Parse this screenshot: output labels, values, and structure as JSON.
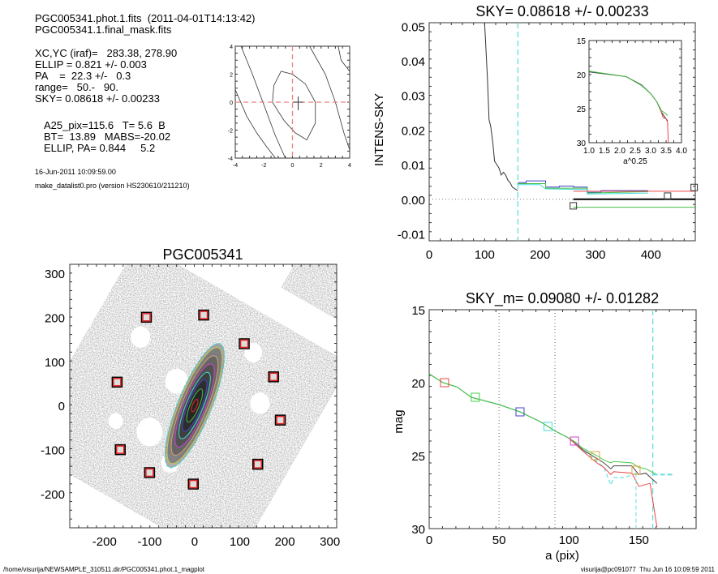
{
  "info": {
    "lines_top": [
      "PGC005341.phot.1.fits  (2011-04-01T14:13:42)",
      "PGC005341.1.final_mask.fits"
    ],
    "lines_params": [
      "XC,YC (iraf)=   283.38, 278.90",
      "ELLIP = 0.821 +/- 0.003",
      "PA    =  22.3 +/-   0.3",
      "range=   50.-   90.",
      "SKY= 0.08618 +/- 0.00233"
    ],
    "lines_results": [
      "A25_pix=115.6   T= 5.6  B",
      "BT=  13.89   MABS=-20.02",
      "ELLIP, PA= 0.844     5.2"
    ],
    "date": "16-Jun-2011 10:09:59.00",
    "program": "make_datalist0.pro (version HS230610/211210)"
  },
  "footer": {
    "path": "/home/visurija/NEWSAMPLE_310511.dir/PGC005341.phot.1_magplot",
    "user_time": "visurija@pc091077  Thu Jun 16 10:09:59 2011"
  },
  "chart_data": [
    {
      "id": "center",
      "type": "line",
      "title": "",
      "xlim": [
        -4,
        4
      ],
      "ylim": [
        -4,
        4
      ],
      "xticks": [
        "-4",
        "-2",
        "0",
        "2",
        "4"
      ],
      "yticks": [
        "-4",
        "-2",
        "0",
        "2",
        "4"
      ],
      "crosshair": [
        0,
        0
      ],
      "center_marker": [
        0.4,
        -0.2
      ],
      "contours": [
        [
          [
            -4,
            0.9
          ],
          [
            -3.2,
            -1
          ],
          [
            -2.5,
            -2.2
          ],
          [
            -1.8,
            -3.2
          ],
          [
            -1.2,
            -4
          ]
        ],
        [
          [
            -1.4,
            0
          ],
          [
            -1.3,
            1.2
          ],
          [
            -0.8,
            2.2
          ],
          [
            0,
            2
          ],
          [
            0.9,
            1.3
          ],
          [
            1.6,
            0
          ],
          [
            1.6,
            -1.5
          ],
          [
            1,
            -2.7
          ],
          [
            0.2,
            -2.2
          ],
          [
            -0.6,
            -1.3
          ],
          [
            -1.4,
            0
          ]
        ],
        [
          [
            -3.6,
            4
          ],
          [
            -2.8,
            2
          ],
          [
            -2,
            -0.2
          ],
          [
            -1.2,
            -2.4
          ],
          [
            -0.5,
            -4
          ]
        ],
        [
          [
            1.2,
            4
          ],
          [
            2.3,
            2
          ],
          [
            3,
            0
          ],
          [
            3.6,
            -2.2
          ],
          [
            4,
            -3.4
          ]
        ],
        [
          [
            3.2,
            4
          ],
          [
            3.4,
            3
          ],
          [
            4,
            2.2
          ]
        ]
      ]
    },
    {
      "id": "sky",
      "type": "line",
      "title": "SKY= 0.08618 +/- 0.00233",
      "ylabel": "INTENS-SKY",
      "xlim": [
        0,
        480
      ],
      "ylim": [
        -0.012,
        0.051
      ],
      "xticks": [
        0,
        100,
        200,
        300,
        400
      ],
      "yticks": [
        "0.05",
        "0.04",
        "0.03",
        "0.02",
        "0.01",
        "0.00",
        "-0.01"
      ],
      "ytick_values": [
        0.05,
        0.04,
        0.03,
        0.02,
        0.01,
        0.0,
        -0.01
      ],
      "sky_radius": 160,
      "series": [
        {
          "name": "profile",
          "color": "#333333",
          "points": [
            [
              100,
              0.051
            ],
            [
              105,
              0.035
            ],
            [
              108,
              0.023
            ],
            [
              111,
              0.021
            ],
            [
              115,
              0.016
            ],
            [
              118,
              0.011
            ],
            [
              122,
              0.01
            ],
            [
              126,
              0.009
            ],
            [
              130,
              0.007
            ],
            [
              134,
              0.0078
            ],
            [
              138,
              0.007
            ],
            [
              142,
              0.0055
            ],
            [
              146,
              0.0048
            ],
            [
              150,
              0.0035
            ],
            [
              155,
              0.003
            ],
            [
              160,
              0.0025
            ]
          ]
        },
        {
          "name": "ring-blue",
          "color": "#4444cc",
          "points": [
            [
              160,
              0.0048
            ],
            [
              175,
              0.0048
            ],
            [
              175,
              0.0053
            ],
            [
              210,
              0.0053
            ],
            [
              210,
              0.0035
            ],
            [
              235,
              0.0035
            ],
            [
              235,
              0.0038
            ],
            [
              260,
              0.0038
            ],
            [
              260,
              0.0035
            ],
            [
              285,
              0.0035
            ],
            [
              285,
              0.002
            ],
            [
              310,
              0.002
            ],
            [
              310,
              0.0025
            ],
            [
              395,
              0.0025
            ]
          ]
        },
        {
          "name": "ring-green",
          "color": "#44bb44",
          "points": [
            [
              160,
              0.0045
            ],
            [
              210,
              0.0045
            ],
            [
              210,
              0.0032
            ],
            [
              285,
              0.0032
            ],
            [
              285,
              0.0018
            ],
            [
              395,
              0.0022
            ]
          ]
        },
        {
          "name": "ring-cyan",
          "color": "#44dddd",
          "points": [
            [
              160,
              0.0042
            ],
            [
              200,
              0.0042
            ],
            [
              210,
              0.003
            ],
            [
              285,
              0.0028
            ],
            [
              285,
              0.0015
            ],
            [
              395,
              0.0018
            ]
          ]
        },
        {
          "name": "sky-plus",
          "color": "#ee4444",
          "points": [
            [
              260,
              0.0023
            ],
            [
              480,
              0.0023
            ]
          ]
        },
        {
          "name": "sky-zero",
          "color": "#000000",
          "points": [
            [
              260,
              0
            ],
            [
              480,
              0
            ]
          ],
          "width": 2
        },
        {
          "name": "sky-minus",
          "color": "#44bb44",
          "points": [
            [
              260,
              -0.0023
            ],
            [
              480,
              -0.0023
            ]
          ]
        }
      ],
      "markers": [
        [
          260,
          -0.0019
        ],
        [
          430,
          0.0009
        ],
        [
          478,
          0.0034
        ]
      ],
      "inset": {
        "xlabel": "a^0.25",
        "xlim": [
          1.0,
          4.0
        ],
        "ylim": [
          15,
          30
        ],
        "xticks": [
          "1.0",
          "1.5",
          "2.0",
          "2.5",
          "3.0",
          "3.5",
          "4.0"
        ],
        "xtick_values": [
          1.0,
          1.5,
          2.0,
          2.5,
          3.0,
          3.5,
          4.0
        ],
        "yticks": [
          "15",
          "20",
          "25",
          "30"
        ],
        "ytick_values": [
          15,
          20,
          25,
          30
        ],
        "series": [
          {
            "name": "black",
            "color": "#333333",
            "points": [
              [
                1.0,
                19.6
              ],
              [
                2.2,
                20.3
              ],
              [
                2.7,
                21.5
              ],
              [
                3.0,
                22.8
              ],
              [
                3.2,
                24.0
              ],
              [
                3.35,
                25.5
              ],
              [
                3.45,
                26.2
              ],
              [
                3.55,
                26.8
              ]
            ]
          },
          {
            "name": "red",
            "color": "#ee4444",
            "points": [
              [
                3.3,
                24.8
              ],
              [
                3.4,
                26.3
              ],
              [
                3.5,
                26.5
              ],
              [
                3.55,
                27.0
              ],
              [
                3.57,
                30
              ]
            ]
          },
          {
            "name": "green",
            "color": "#44bb44",
            "points": [
              [
                1.0,
                19.5
              ],
              [
                2.2,
                20.3
              ],
              [
                2.7,
                21.6
              ],
              [
                3.0,
                22.8
              ],
              [
                3.2,
                24.0
              ],
              [
                3.35,
                25.3
              ],
              [
                3.45,
                25.6
              ],
              [
                3.55,
                26.0
              ]
            ]
          }
        ]
      }
    },
    {
      "id": "image",
      "type": "scatter",
      "title": "PGC005341",
      "xlim": [
        -277,
        315
      ],
      "ylim": [
        -277,
        320
      ],
      "xticks": [
        -200,
        -100,
        0,
        100,
        200,
        300
      ],
      "yticks": [
        300,
        200,
        100,
        0,
        -100,
        -200
      ],
      "sky_boxes": [
        [
          -107,
          200
        ],
        [
          20,
          205
        ],
        [
          110,
          140
        ],
        [
          175,
          65
        ],
        [
          190,
          -33
        ],
        [
          140,
          -133
        ],
        [
          -3,
          -178
        ],
        [
          -100,
          -152
        ],
        [
          -165,
          -100
        ],
        [
          -172,
          53
        ]
      ],
      "isophotes": [
        {
          "a": 150,
          "b": 38,
          "color": "#44dddd"
        },
        {
          "a": 140,
          "b": 34,
          "color": "#c8c850"
        },
        {
          "a": 120,
          "b": 28,
          "color": "#d4a070"
        },
        {
          "a": 100,
          "b": 24,
          "color": "#cc44cc"
        },
        {
          "a": 80,
          "b": 19,
          "color": "#44dddd"
        },
        {
          "a": 62,
          "b": 15,
          "color": "#4444cc"
        },
        {
          "a": 40,
          "b": 10,
          "color": "#44bb44"
        },
        {
          "a": 15,
          "b": 5,
          "color": "#ee2222"
        }
      ],
      "pa_deg": 22.3
    },
    {
      "id": "mag",
      "type": "line",
      "title": "SKY_m=  0.09080 +/- 0.01282",
      "xlabel": "a (pix)",
      "ylabel": "mag",
      "xlim": [
        0,
        191
      ],
      "ylim": [
        15,
        30
      ],
      "xticks": [
        0,
        50,
        100,
        150
      ],
      "yticks": [
        15,
        20,
        25,
        30
      ],
      "range_lines": [
        50,
        90
      ],
      "sky_radius": 160,
      "series": [
        {
          "name": "cyan",
          "color": "#44dddd",
          "points": [
            [
              0,
              19.4
            ],
            [
              10,
              20
            ],
            [
              20,
              20.3
            ],
            [
              30,
              21
            ],
            [
              50,
              21.5
            ],
            [
              65,
              22
            ],
            [
              80,
              22.7
            ],
            [
              90,
              23.3
            ],
            [
              100,
              23.8
            ],
            [
              110,
              24.6
            ],
            [
              120,
              25.4
            ],
            [
              125,
              25.8
            ],
            [
              130,
              27.0
            ],
            [
              132,
              26.5
            ],
            [
              140,
              26.5
            ],
            [
              148,
              26.2
            ]
          ],
          "dashed": true
        },
        {
          "name": "black",
          "color": "#444444",
          "points": [
            [
              0,
              19.4
            ],
            [
              10,
              20
            ],
            [
              20,
              20.3
            ],
            [
              30,
              21
            ],
            [
              50,
              21.5
            ],
            [
              65,
              22
            ],
            [
              80,
              22.7
            ],
            [
              90,
              23.3
            ],
            [
              100,
              23.8
            ],
            [
              105,
              24.2
            ],
            [
              110,
              24.6
            ],
            [
              120,
              25.2
            ],
            [
              125,
              25.5
            ],
            [
              130,
              25.9
            ],
            [
              132,
              25.7
            ],
            [
              145,
              25.7
            ],
            [
              150,
              26.3
            ],
            [
              155,
              26.2
            ],
            [
              163,
              26.9
            ]
          ]
        },
        {
          "name": "green",
          "color": "#44cc44",
          "points": [
            [
              0,
              19.4
            ],
            [
              10,
              20
            ],
            [
              20,
              20.3
            ],
            [
              30,
              21
            ],
            [
              50,
              21.5
            ],
            [
              65,
              22
            ],
            [
              80,
              22.7
            ],
            [
              90,
              23.3
            ],
            [
              100,
              23.8
            ],
            [
              105,
              24.1
            ],
            [
              110,
              24.5
            ],
            [
              120,
              25.0
            ],
            [
              125,
              25.3
            ],
            [
              130,
              25.5
            ],
            [
              132,
              25.4
            ],
            [
              145,
              25.5
            ],
            [
              150,
              25.8
            ],
            [
              155,
              25.9
            ],
            [
              163,
              26.3
            ]
          ]
        },
        {
          "name": "red",
          "color": "#ee4444",
          "points": [
            [
              100,
              23.8
            ],
            [
              110,
              24.7
            ],
            [
              120,
              25.5
            ],
            [
              125,
              25.8
            ],
            [
              130,
              26.3
            ],
            [
              132,
              26.1
            ],
            [
              145,
              26.2
            ],
            [
              150,
              27.1
            ],
            [
              158,
              26.9
            ],
            [
              163,
              29.9
            ]
          ]
        }
      ],
      "sky_level": {
        "mag": 26.3,
        "from": 160,
        "to": 175
      },
      "markers": [
        {
          "x": 11,
          "y": 20,
          "color": "#ee4444"
        },
        {
          "x": 33,
          "y": 21,
          "color": "#44cc44"
        },
        {
          "x": 65,
          "y": 22,
          "color": "#4444cc"
        },
        {
          "x": 85,
          "y": 23,
          "color": "#44dddd"
        },
        {
          "x": 104,
          "y": 24,
          "color": "#cc44cc"
        },
        {
          "x": 119,
          "y": 25,
          "color": "#e8a040"
        },
        {
          "x": 148,
          "y": 26,
          "color": "#e8a040"
        }
      ]
    }
  ]
}
